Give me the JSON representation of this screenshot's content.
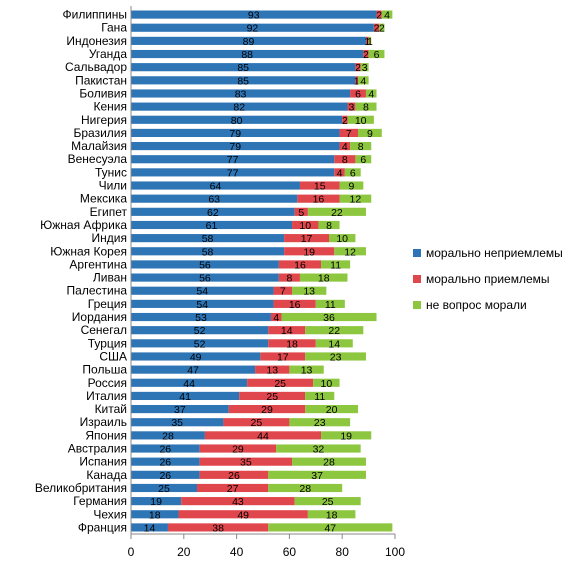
{
  "chart_data": {
    "type": "bar",
    "orientation": "horizontal",
    "stacked": true,
    "title": "",
    "xlabel": "",
    "ylabel": "",
    "xlim": [
      0,
      100
    ],
    "x_ticks": [
      0,
      20,
      40,
      60,
      80,
      100
    ],
    "grid": false,
    "legend_position": "right",
    "categories": [
      "Филиппины",
      "Гана",
      "Индонезия",
      "Уганда",
      "Сальвадор",
      "Пакистан",
      "Боливия",
      "Кения",
      "Нигерия",
      "Бразилия",
      "Малайзия",
      "Венесуэла",
      "Тунис",
      "Чили",
      "Мексика",
      "Египет",
      "Южная Африка",
      "Индия",
      "Южная Корея",
      "Аргентина",
      "Ливан",
      "Палестина",
      "Греция",
      "Иордания",
      "Сенегал",
      "Турция",
      "США",
      "Польша",
      "Россия",
      "Италия",
      "Китай",
      "Израиль",
      "Япония",
      "Австралия",
      "Испания",
      "Канада",
      "Великобритания",
      "Германия",
      "Чехия",
      "Франция"
    ],
    "series": [
      {
        "name": "морально неприемлемы",
        "color": "#2e75b6",
        "values": [
          93,
          92,
          89,
          88,
          85,
          85,
          83,
          82,
          80,
          79,
          79,
          77,
          77,
          64,
          63,
          62,
          61,
          58,
          58,
          56,
          56,
          54,
          54,
          53,
          52,
          52,
          49,
          47,
          44,
          41,
          37,
          35,
          28,
          26,
          26,
          26,
          25,
          19,
          18,
          14
        ]
      },
      {
        "name": "морально приемлемы",
        "color": "#e0474c",
        "values": [
          2,
          2,
          1,
          2,
          2,
          1,
          6,
          3,
          2,
          7,
          4,
          8,
          4,
          15,
          16,
          5,
          10,
          17,
          19,
          16,
          8,
          7,
          16,
          4,
          14,
          18,
          17,
          13,
          25,
          25,
          29,
          25,
          44,
          29,
          35,
          26,
          27,
          43,
          49,
          38
        ]
      },
      {
        "name": "не вопрос морали",
        "color": "#8dc63f",
        "values": [
          4,
          2,
          1,
          6,
          3,
          4,
          4,
          8,
          10,
          9,
          8,
          6,
          6,
          9,
          12,
          22,
          8,
          10,
          12,
          11,
          18,
          13,
          11,
          36,
          22,
          14,
          23,
          13,
          10,
          11,
          20,
          23,
          19,
          32,
          28,
          37,
          28,
          25,
          18,
          47
        ]
      }
    ]
  }
}
